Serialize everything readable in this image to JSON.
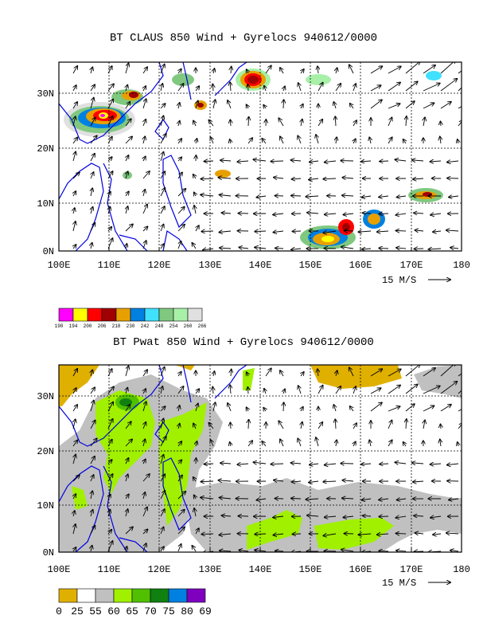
{
  "panel1": {
    "title": "BT CLAUS 850 Wind + Gyrelocs 940612/0000",
    "lat_ticks": [
      "0N",
      "10N",
      "20N",
      "30N"
    ],
    "lon_ticks": [
      "100E",
      "110E",
      "120E",
      "130E",
      "140E",
      "150E",
      "160E",
      "170E",
      "180"
    ],
    "scale_label": "15 M/S",
    "legend": {
      "values": [
        "190",
        "194",
        "200",
        "206",
        "218",
        "230",
        "242",
        "248",
        "254",
        "260",
        "266"
      ],
      "colors": [
        "#ff00ff",
        "#ffff00",
        "#ff0000",
        "#a00000",
        "#e8a000",
        "#0080e0",
        "#40e0ff",
        "#80c880",
        "#a8f0a8",
        "#e0e0e0"
      ]
    }
  },
  "panel2": {
    "title": "BT Pwat 850 Wind + Gyrelocs 940612/0000",
    "lat_ticks": [
      "0N",
      "10N",
      "20N",
      "30N"
    ],
    "lon_ticks": [
      "100E",
      "110E",
      "120E",
      "130E",
      "140E",
      "150E",
      "160E",
      "170E",
      "180"
    ],
    "scale_label": "15 M/S",
    "legend": {
      "values": [
        "0",
        "25",
        "55",
        "60",
        "65",
        "70",
        "75",
        "80",
        "69"
      ],
      "colors": [
        "#e0b000",
        "#ffffff",
        "#c0c0c0",
        "#a0f000",
        "#50c000",
        "#108010",
        "#0080e0",
        "#8000c0"
      ]
    }
  },
  "chart_data": [
    {
      "type": "heatmap",
      "title": "BT CLAUS 850 Wind + Gyrelocs 940612/0000",
      "x_ticks": [
        "100E",
        "110E",
        "120E",
        "130E",
        "140E",
        "150E",
        "160E",
        "170E",
        "180"
      ],
      "y_ticks": [
        "0N",
        "10N",
        "20N",
        "30N"
      ],
      "xlim": [
        100,
        180
      ],
      "ylim": [
        0,
        36
      ],
      "grid": true,
      "legend_levels": [
        190,
        194,
        200,
        206,
        218,
        230,
        242,
        248,
        254,
        260,
        266
      ]
    },
    {
      "type": "heatmap",
      "title": "BT Pwat 850 Wind + Gyrelocs 940612/0000",
      "x_ticks": [
        "100E",
        "110E",
        "120E",
        "130E",
        "140E",
        "150E",
        "160E",
        "170E",
        "180"
      ],
      "y_ticks": [
        "0N",
        "10N",
        "20N",
        "30N"
      ],
      "xlim": [
        100,
        180
      ],
      "ylim": [
        0,
        36
      ],
      "grid": true,
      "legend_levels": [
        0,
        25,
        55,
        60,
        65,
        70,
        75,
        80,
        69
      ]
    }
  ]
}
